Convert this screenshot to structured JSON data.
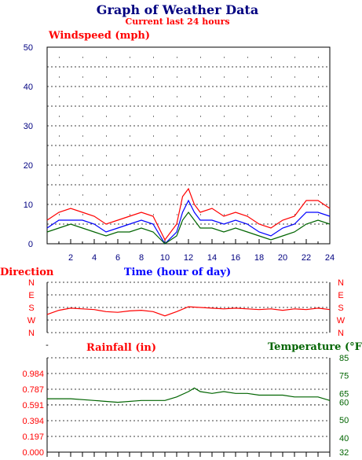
{
  "title": "Graph of Weather Data",
  "subtitle": "Current last 24 hours",
  "colors": {
    "title": "#000080",
    "red": "#ff0000",
    "blue": "#0000ff",
    "green": "#006400",
    "axis_blue": "#000080",
    "grid": "#000000"
  },
  "chart_data": [
    {
      "type": "line",
      "title": "Windspeed (mph)",
      "xlabel": "Time (hour of day)",
      "ylabel": "",
      "xlim": [
        0,
        24
      ],
      "ylim": [
        0,
        50
      ],
      "x_ticks": [
        "2",
        "4",
        "6",
        "8",
        "10",
        "12",
        "14",
        "16",
        "18",
        "20",
        "22",
        "24"
      ],
      "y_ticks": [
        "0",
        "10",
        "20",
        "30",
        "40",
        "50"
      ],
      "grid": true,
      "x": [
        0,
        1,
        2,
        3,
        4,
        5,
        6,
        7,
        8,
        9,
        10,
        11,
        11.5,
        12,
        12.5,
        13,
        14,
        15,
        16,
        17,
        18,
        19,
        20,
        21,
        22,
        23,
        24
      ],
      "series": [
        {
          "color": "#ff0000",
          "values": [
            6,
            8,
            9,
            8,
            7,
            5,
            6,
            7,
            8,
            7,
            1,
            5,
            12,
            14,
            10,
            8,
            9,
            7,
            8,
            7,
            5,
            4,
            6,
            7,
            11,
            11,
            9
          ]
        },
        {
          "color": "#0000ff",
          "values": [
            4,
            6,
            6,
            6,
            5,
            3,
            4,
            5,
            6,
            5,
            0,
            3,
            8,
            11,
            8,
            6,
            6,
            5,
            6,
            5,
            3,
            2,
            4,
            5,
            8,
            8,
            7
          ]
        },
        {
          "color": "#006400",
          "values": [
            3,
            4,
            5,
            4,
            3,
            2,
            3,
            3,
            4,
            3,
            0,
            2,
            6,
            8,
            6,
            4,
            4,
            3,
            4,
            3,
            2,
            1,
            2,
            3,
            5,
            6,
            5
          ]
        }
      ]
    },
    {
      "type": "line",
      "title": "Direction",
      "ylabels": [
        "N",
        "W",
        "S",
        "E",
        "N"
      ],
      "xlim": [
        0,
        24
      ],
      "grid": true,
      "x": [
        0,
        1,
        2,
        3,
        4,
        5,
        6,
        7,
        8,
        9,
        10,
        11,
        12,
        13,
        14,
        15,
        16,
        17,
        18,
        19,
        20,
        21,
        22,
        23,
        24
      ],
      "series": [
        {
          "color": "#ff0000",
          "values": [
            130,
            160,
            175,
            170,
            165,
            150,
            145,
            155,
            160,
            150,
            120,
            150,
            185,
            180,
            175,
            170,
            175,
            170,
            165,
            170,
            160,
            170,
            165,
            175,
            165
          ]
        }
      ]
    },
    {
      "type": "line",
      "title": "Rainfall (in)",
      "y2label": "Temperature (°F)",
      "xlim": [
        0,
        24
      ],
      "ylim": [
        0,
        1.181
      ],
      "y_ticks": [
        "0.000",
        "0.197",
        "0.394",
        "0.591",
        "0.787",
        "0.984"
      ],
      "y2lim": [
        32,
        85
      ],
      "y2_ticks": [
        "32",
        "40",
        "50",
        "60",
        "65",
        "75",
        "85"
      ],
      "grid": true,
      "x": [
        0,
        2,
        4,
        6,
        8,
        10,
        11,
        12,
        12.5,
        13,
        14,
        15,
        16,
        17,
        18,
        19,
        20,
        21,
        22,
        23,
        24
      ],
      "series": [
        {
          "color": "#006400",
          "values": [
            62,
            62,
            61,
            60,
            61,
            61,
            63,
            66,
            68,
            66,
            65,
            66,
            65,
            65,
            64,
            64,
            64,
            63,
            63,
            63,
            61
          ]
        }
      ]
    }
  ]
}
